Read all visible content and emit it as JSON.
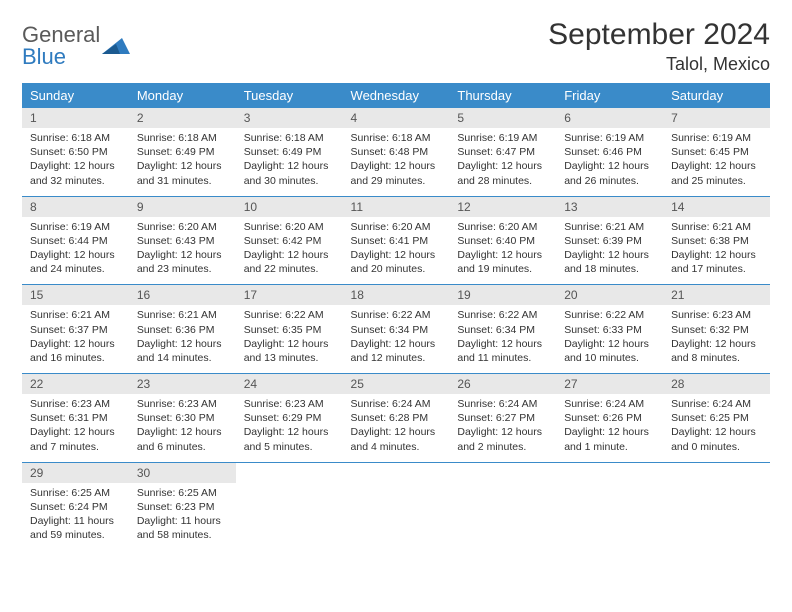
{
  "logo": {
    "word1": "General",
    "word2": "Blue"
  },
  "header": {
    "month_title": "September 2024",
    "location": "Talol, Mexico"
  },
  "colors": {
    "header_bg": "#3a8bc9",
    "header_fg": "#ffffff",
    "daynum_bg": "#e8e8e8",
    "daynum_fg": "#555555",
    "row_border": "#3a8bc9",
    "logo_gray": "#5a5a5a",
    "logo_blue": "#2f7bbf"
  },
  "weekdays": [
    "Sunday",
    "Monday",
    "Tuesday",
    "Wednesday",
    "Thursday",
    "Friday",
    "Saturday"
  ],
  "days": [
    {
      "n": "1",
      "sunrise": "6:18 AM",
      "sunset": "6:50 PM",
      "daylight": "12 hours and 32 minutes."
    },
    {
      "n": "2",
      "sunrise": "6:18 AM",
      "sunset": "6:49 PM",
      "daylight": "12 hours and 31 minutes."
    },
    {
      "n": "3",
      "sunrise": "6:18 AM",
      "sunset": "6:49 PM",
      "daylight": "12 hours and 30 minutes."
    },
    {
      "n": "4",
      "sunrise": "6:18 AM",
      "sunset": "6:48 PM",
      "daylight": "12 hours and 29 minutes."
    },
    {
      "n": "5",
      "sunrise": "6:19 AM",
      "sunset": "6:47 PM",
      "daylight": "12 hours and 28 minutes."
    },
    {
      "n": "6",
      "sunrise": "6:19 AM",
      "sunset": "6:46 PM",
      "daylight": "12 hours and 26 minutes."
    },
    {
      "n": "7",
      "sunrise": "6:19 AM",
      "sunset": "6:45 PM",
      "daylight": "12 hours and 25 minutes."
    },
    {
      "n": "8",
      "sunrise": "6:19 AM",
      "sunset": "6:44 PM",
      "daylight": "12 hours and 24 minutes."
    },
    {
      "n": "9",
      "sunrise": "6:20 AM",
      "sunset": "6:43 PM",
      "daylight": "12 hours and 23 minutes."
    },
    {
      "n": "10",
      "sunrise": "6:20 AM",
      "sunset": "6:42 PM",
      "daylight": "12 hours and 22 minutes."
    },
    {
      "n": "11",
      "sunrise": "6:20 AM",
      "sunset": "6:41 PM",
      "daylight": "12 hours and 20 minutes."
    },
    {
      "n": "12",
      "sunrise": "6:20 AM",
      "sunset": "6:40 PM",
      "daylight": "12 hours and 19 minutes."
    },
    {
      "n": "13",
      "sunrise": "6:21 AM",
      "sunset": "6:39 PM",
      "daylight": "12 hours and 18 minutes."
    },
    {
      "n": "14",
      "sunrise": "6:21 AM",
      "sunset": "6:38 PM",
      "daylight": "12 hours and 17 minutes."
    },
    {
      "n": "15",
      "sunrise": "6:21 AM",
      "sunset": "6:37 PM",
      "daylight": "12 hours and 16 minutes."
    },
    {
      "n": "16",
      "sunrise": "6:21 AM",
      "sunset": "6:36 PM",
      "daylight": "12 hours and 14 minutes."
    },
    {
      "n": "17",
      "sunrise": "6:22 AM",
      "sunset": "6:35 PM",
      "daylight": "12 hours and 13 minutes."
    },
    {
      "n": "18",
      "sunrise": "6:22 AM",
      "sunset": "6:34 PM",
      "daylight": "12 hours and 12 minutes."
    },
    {
      "n": "19",
      "sunrise": "6:22 AM",
      "sunset": "6:34 PM",
      "daylight": "12 hours and 11 minutes."
    },
    {
      "n": "20",
      "sunrise": "6:22 AM",
      "sunset": "6:33 PM",
      "daylight": "12 hours and 10 minutes."
    },
    {
      "n": "21",
      "sunrise": "6:23 AM",
      "sunset": "6:32 PM",
      "daylight": "12 hours and 8 minutes."
    },
    {
      "n": "22",
      "sunrise": "6:23 AM",
      "sunset": "6:31 PM",
      "daylight": "12 hours and 7 minutes."
    },
    {
      "n": "23",
      "sunrise": "6:23 AM",
      "sunset": "6:30 PM",
      "daylight": "12 hours and 6 minutes."
    },
    {
      "n": "24",
      "sunrise": "6:23 AM",
      "sunset": "6:29 PM",
      "daylight": "12 hours and 5 minutes."
    },
    {
      "n": "25",
      "sunrise": "6:24 AM",
      "sunset": "6:28 PM",
      "daylight": "12 hours and 4 minutes."
    },
    {
      "n": "26",
      "sunrise": "6:24 AM",
      "sunset": "6:27 PM",
      "daylight": "12 hours and 2 minutes."
    },
    {
      "n": "27",
      "sunrise": "6:24 AM",
      "sunset": "6:26 PM",
      "daylight": "12 hours and 1 minute."
    },
    {
      "n": "28",
      "sunrise": "6:24 AM",
      "sunset": "6:25 PM",
      "daylight": "12 hours and 0 minutes."
    },
    {
      "n": "29",
      "sunrise": "6:25 AM",
      "sunset": "6:24 PM",
      "daylight": "11 hours and 59 minutes."
    },
    {
      "n": "30",
      "sunrise": "6:25 AM",
      "sunset": "6:23 PM",
      "daylight": "11 hours and 58 minutes."
    }
  ],
  "labels": {
    "sunrise": "Sunrise:",
    "sunset": "Sunset:",
    "daylight": "Daylight:"
  }
}
